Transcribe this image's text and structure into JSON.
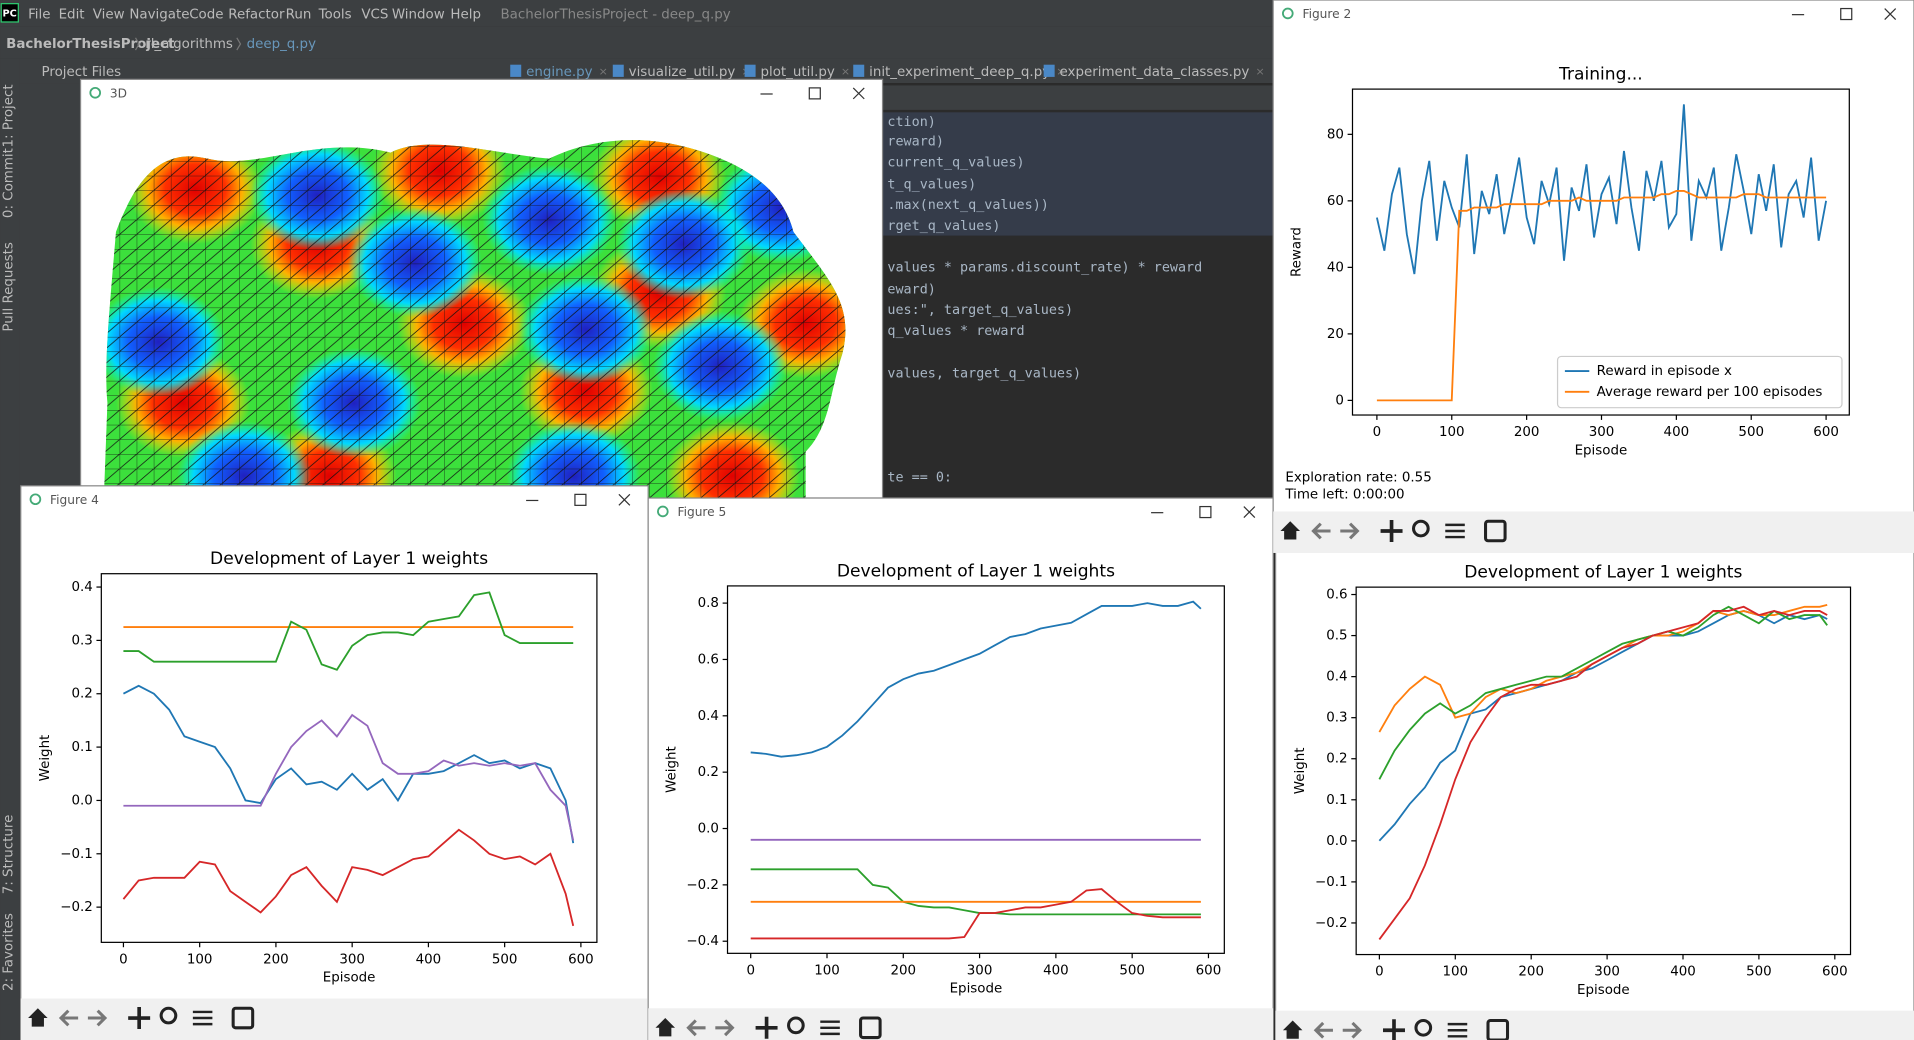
{
  "app_icon": "PC",
  "menu": [
    "File",
    "Edit",
    "View",
    "Navigate",
    "Code",
    "Refactor",
    "Run",
    "Tools",
    "VCS",
    "Window",
    "Help"
  ],
  "window_title": "BachelorThesisProject - deep_q.py",
  "breadcrumb": [
    "BachelorThesisProject",
    "rl_algorithms",
    "deep_q.py"
  ],
  "side_tabs": [
    "1: Project",
    "0: Commit",
    "Pull Requests",
    "7: Structure",
    "2: Favorites"
  ],
  "project_label": "Project Files",
  "editor_tabs": [
    "engine.py",
    "visualize_util.py",
    "plot_util.py",
    "init_experiment_deep_q.py",
    "experiment_data_classes.py"
  ],
  "code_lines": [
    "ction)",
    "reward)",
    "current_q_values)",
    "t_q_values)",
    ".max(next_q_values))",
    "rget_q_values)",
    "values * params.discount_rate) * reward",
    "eward)",
    "ues:\", target_q_values)",
    "q_values * reward",
    "values, target_q_values)",
    "te == 0:"
  ],
  "windows": {
    "three_d": "3D",
    "figure_4": "Figure 4",
    "figure_5": "Figure 5",
    "figure_2": "Figure 2"
  },
  "status": [
    "Exploration rate: 0.55",
    "Time left: 0:00:00"
  ],
  "chart_data": [
    {
      "type": "line",
      "title": "Training...",
      "xlabel": "Episode",
      "ylabel": "Reward",
      "x": [
        0,
        10,
        20,
        30,
        40,
        50,
        60,
        70,
        80,
        90,
        100,
        110,
        120,
        130,
        140,
        150,
        160,
        170,
        180,
        190,
        200,
        210,
        220,
        230,
        240,
        250,
        260,
        270,
        280,
        290,
        300,
        310,
        320,
        330,
        340,
        350,
        360,
        370,
        380,
        390,
        400,
        410,
        420,
        430,
        440,
        450,
        460,
        470,
        480,
        490,
        500,
        510,
        520,
        530,
        540,
        550,
        560,
        570,
        580,
        590,
        600
      ],
      "xlim": [
        -32.6,
        631
      ],
      "ylim": [
        -4.4,
        93.6
      ],
      "xticks": [
        0,
        100,
        200,
        300,
        400,
        500,
        600
      ],
      "yticks": [
        0,
        20,
        40,
        60,
        80
      ],
      "legend": "lower right",
      "series": [
        {
          "name": "Reward in episode x",
          "color": "#1f77b4",
          "values": [
            55,
            45,
            62,
            70,
            50,
            38,
            60,
            72,
            48,
            66,
            58,
            52,
            74,
            44,
            63,
            56,
            68,
            50,
            61,
            73,
            55,
            47,
            66,
            59,
            70,
            42,
            64,
            57,
            71,
            49,
            62,
            67,
            53,
            75,
            58,
            45,
            69,
            60,
            72,
            52,
            56,
            89,
            48,
            66,
            61,
            70,
            45,
            58,
            74,
            63,
            50,
            68,
            57,
            71,
            46,
            62,
            66,
            55,
            73,
            48,
            60
          ]
        },
        {
          "name": "Average reward per 100 episodes",
          "color": "#ff7f0e",
          "values": [
            0,
            0,
            0,
            0,
            0,
            0,
            0,
            0,
            0,
            0,
            0,
            57,
            57,
            58,
            58,
            58,
            58,
            59,
            59,
            59,
            59,
            59,
            59,
            60,
            60,
            60,
            60,
            61,
            60,
            60,
            60,
            60,
            60,
            61,
            61,
            61,
            61,
            61,
            62,
            62,
            63,
            63,
            62,
            61,
            61,
            61,
            61,
            61,
            61,
            62,
            62,
            62,
            61,
            61,
            61,
            61,
            61,
            61,
            61,
            61,
            61
          ]
        }
      ]
    },
    {
      "type": "line",
      "title": "Development of Layer 1 weights",
      "xlabel": "Episode",
      "ylabel": "Weight",
      "x": [
        0,
        20,
        40,
        60,
        80,
        100,
        120,
        140,
        160,
        180,
        200,
        220,
        240,
        260,
        280,
        300,
        320,
        340,
        360,
        380,
        400,
        420,
        440,
        460,
        480,
        500,
        520,
        540,
        560,
        580,
        590
      ],
      "xlim": [
        -29,
        621
      ],
      "ylim": [
        -0.266,
        0.425
      ],
      "xticks": [
        0,
        100,
        200,
        300,
        400,
        500,
        600
      ],
      "yticks": [
        {
          "value": -0.2,
          "label": "−0.2"
        },
        {
          "value": -0.1,
          "label": "−0.1"
        },
        {
          "value": 0,
          "label": "0.0"
        },
        0.1,
        0.2,
        0.3,
        0.4
      ],
      "series": [
        {
          "color": "#1f77b4",
          "values": [
            0.2,
            0.215,
            0.2,
            0.17,
            0.12,
            0.11,
            0.1,
            0.06,
            0.0,
            -0.005,
            0.04,
            0.06,
            0.03,
            0.035,
            0.02,
            0.05,
            0.02,
            0.04,
            0.0,
            0.05,
            0.05,
            0.055,
            0.07,
            0.085,
            0.07,
            0.075,
            0.06,
            0.07,
            0.06,
            0.0,
            -0.08
          ]
        },
        {
          "color": "#ff7f0e",
          "values": [
            0.325,
            0.325,
            0.325,
            0.325,
            0.325,
            0.325,
            0.325,
            0.325,
            0.325,
            0.325,
            0.325,
            0.325,
            0.325,
            0.325,
            0.325,
            0.325,
            0.325,
            0.325,
            0.325,
            0.325,
            0.325,
            0.325,
            0.325,
            0.325,
            0.325,
            0.325,
            0.325,
            0.325,
            0.325,
            0.325,
            0.325
          ]
        },
        {
          "color": "#2ca02c",
          "values": [
            0.28,
            0.28,
            0.26,
            0.26,
            0.26,
            0.26,
            0.26,
            0.26,
            0.26,
            0.26,
            0.26,
            0.335,
            0.32,
            0.255,
            0.245,
            0.29,
            0.31,
            0.315,
            0.315,
            0.31,
            0.335,
            0.34,
            0.345,
            0.385,
            0.39,
            0.31,
            0.295,
            0.295,
            0.295,
            0.295,
            0.295
          ]
        },
        {
          "color": "#d62728",
          "values": [
            -0.185,
            -0.15,
            -0.145,
            -0.145,
            -0.145,
            -0.115,
            -0.12,
            -0.17,
            -0.19,
            -0.21,
            -0.18,
            -0.14,
            -0.125,
            -0.16,
            -0.19,
            -0.125,
            -0.13,
            -0.14,
            -0.125,
            -0.11,
            -0.105,
            -0.08,
            -0.055,
            -0.075,
            -0.1,
            -0.11,
            -0.105,
            -0.12,
            -0.1,
            -0.175,
            -0.235
          ]
        },
        {
          "color": "#9467bd",
          "values": [
            -0.01,
            -0.01,
            -0.01,
            -0.01,
            -0.01,
            -0.01,
            -0.01,
            -0.01,
            -0.01,
            -0.01,
            0.05,
            0.1,
            0.13,
            0.15,
            0.12,
            0.16,
            0.14,
            0.07,
            0.05,
            0.05,
            0.055,
            0.075,
            0.065,
            0.07,
            0.065,
            0.07,
            0.065,
            0.07,
            0.02,
            -0.01,
            -0.075
          ]
        }
      ]
    },
    {
      "type": "line",
      "title": "Development of Layer 1 weights",
      "xlabel": "Episode",
      "ylabel": "Weight",
      "x": [
        0,
        20,
        40,
        60,
        80,
        100,
        120,
        140,
        160,
        180,
        200,
        220,
        240,
        260,
        280,
        300,
        320,
        340,
        360,
        380,
        400,
        420,
        440,
        460,
        480,
        500,
        520,
        540,
        560,
        580,
        590
      ],
      "xlim": [
        -30.4,
        620.8
      ],
      "ylim": [
        -0.443,
        0.861
      ],
      "xticks": [
        0,
        100,
        200,
        300,
        400,
        500,
        600
      ],
      "yticks": [
        {
          "value": -0.4,
          "label": "−0.4"
        },
        {
          "value": -0.2,
          "label": "−0.2"
        },
        {
          "value": 0,
          "label": "0.0"
        },
        0.2,
        0.4,
        0.6,
        0.8
      ],
      "series": [
        {
          "color": "#1f77b4",
          "values": [
            0.27,
            0.265,
            0.255,
            0.26,
            0.27,
            0.29,
            0.33,
            0.38,
            0.44,
            0.5,
            0.53,
            0.55,
            0.56,
            0.58,
            0.6,
            0.62,
            0.65,
            0.68,
            0.69,
            0.71,
            0.72,
            0.73,
            0.76,
            0.79,
            0.79,
            0.79,
            0.8,
            0.79,
            0.79,
            0.805,
            0.78
          ]
        },
        {
          "color": "#9467bd",
          "values": [
            -0.04,
            -0.04,
            -0.04,
            -0.04,
            -0.04,
            -0.04,
            -0.04,
            -0.04,
            -0.04,
            -0.04,
            -0.04,
            -0.04,
            -0.04,
            -0.04,
            -0.04,
            -0.04,
            -0.04,
            -0.04,
            -0.04,
            -0.04,
            -0.04,
            -0.04,
            -0.04,
            -0.04,
            -0.04,
            -0.04,
            -0.04,
            -0.04,
            -0.04,
            -0.04,
            -0.04
          ]
        },
        {
          "color": "#2ca02c",
          "values": [
            -0.145,
            -0.145,
            -0.145,
            -0.145,
            -0.145,
            -0.145,
            -0.145,
            -0.145,
            -0.2,
            -0.21,
            -0.26,
            -0.275,
            -0.28,
            -0.28,
            -0.29,
            -0.3,
            -0.3,
            -0.305,
            -0.305,
            -0.305,
            -0.305,
            -0.305,
            -0.305,
            -0.305,
            -0.305,
            -0.305,
            -0.305,
            -0.305,
            -0.305,
            -0.305,
            -0.305
          ]
        },
        {
          "color": "#ff7f0e",
          "values": [
            -0.26,
            -0.26,
            -0.26,
            -0.26,
            -0.26,
            -0.26,
            -0.26,
            -0.26,
            -0.26,
            -0.26,
            -0.26,
            -0.26,
            -0.26,
            -0.26,
            -0.26,
            -0.26,
            -0.26,
            -0.26,
            -0.26,
            -0.26,
            -0.26,
            -0.26,
            -0.26,
            -0.26,
            -0.26,
            -0.26,
            -0.26,
            -0.26,
            -0.26,
            -0.26,
            -0.26
          ]
        },
        {
          "color": "#d62728",
          "values": [
            -0.39,
            -0.39,
            -0.39,
            -0.39,
            -0.39,
            -0.39,
            -0.39,
            -0.39,
            -0.39,
            -0.39,
            -0.39,
            -0.39,
            -0.39,
            -0.39,
            -0.385,
            -0.3,
            -0.3,
            -0.29,
            -0.28,
            -0.28,
            -0.27,
            -0.26,
            -0.22,
            -0.215,
            -0.26,
            -0.3,
            -0.31,
            -0.315,
            -0.315,
            -0.315,
            -0.315
          ]
        }
      ]
    },
    {
      "type": "line",
      "title": "Development of Layer 1 weights",
      "xlabel": "Episode",
      "ylabel": "Weight",
      "x": [
        0,
        20,
        40,
        60,
        80,
        100,
        120,
        140,
        160,
        180,
        200,
        220,
        240,
        260,
        280,
        300,
        320,
        340,
        360,
        380,
        400,
        420,
        440,
        460,
        480,
        500,
        520,
        540,
        560,
        580,
        590
      ],
      "xlim": [
        -30.6,
        620.7
      ],
      "ylim": [
        -0.277,
        0.618
      ],
      "xticks": [
        0,
        100,
        200,
        300,
        400,
        500,
        600
      ],
      "yticks": [
        {
          "value": -0.2,
          "label": "−0.2"
        },
        {
          "value": -0.1,
          "label": "−0.1"
        },
        {
          "value": 0,
          "label": "0.0"
        },
        0.1,
        0.2,
        0.3,
        0.4,
        0.5,
        0.6
      ],
      "series": [
        {
          "color": "#1f77b4",
          "values": [
            0.0,
            0.04,
            0.09,
            0.13,
            0.19,
            0.22,
            0.31,
            0.32,
            0.35,
            0.36,
            0.37,
            0.38,
            0.39,
            0.41,
            0.42,
            0.44,
            0.46,
            0.48,
            0.5,
            0.5,
            0.5,
            0.51,
            0.53,
            0.55,
            0.56,
            0.55,
            0.53,
            0.55,
            0.54,
            0.55,
            0.54
          ]
        },
        {
          "color": "#ff7f0e",
          "values": [
            0.265,
            0.33,
            0.37,
            0.4,
            0.38,
            0.3,
            0.31,
            0.35,
            0.37,
            0.36,
            0.37,
            0.39,
            0.4,
            0.41,
            0.43,
            0.45,
            0.47,
            0.49,
            0.5,
            0.5,
            0.51,
            0.53,
            0.56,
            0.55,
            0.56,
            0.55,
            0.55,
            0.56,
            0.57,
            0.57,
            0.575
          ]
        },
        {
          "color": "#2ca02c",
          "values": [
            0.15,
            0.22,
            0.27,
            0.31,
            0.335,
            0.31,
            0.33,
            0.36,
            0.37,
            0.38,
            0.39,
            0.4,
            0.4,
            0.42,
            0.44,
            0.46,
            0.48,
            0.49,
            0.5,
            0.51,
            0.5,
            0.52,
            0.55,
            0.57,
            0.55,
            0.53,
            0.56,
            0.54,
            0.55,
            0.55,
            0.525
          ]
        },
        {
          "color": "#d62728",
          "values": [
            -0.24,
            -0.19,
            -0.14,
            -0.06,
            0.04,
            0.15,
            0.24,
            0.3,
            0.35,
            0.37,
            0.38,
            0.38,
            0.39,
            0.4,
            0.43,
            0.45,
            0.47,
            0.48,
            0.5,
            0.51,
            0.52,
            0.53,
            0.56,
            0.56,
            0.57,
            0.55,
            0.56,
            0.55,
            0.56,
            0.56,
            0.55
          ]
        }
      ]
    }
  ]
}
